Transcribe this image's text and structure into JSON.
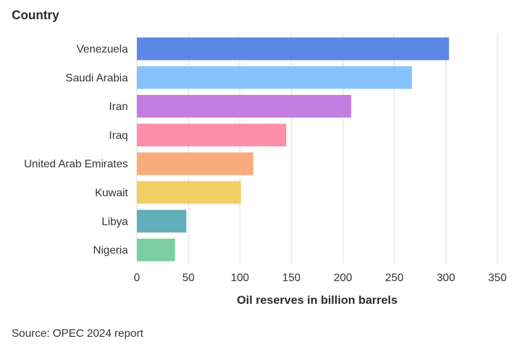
{
  "source": "Source: OPEC 2024 report",
  "chart_data": {
    "type": "bar",
    "orientation": "horizontal",
    "ylabel": "Country",
    "xlabel": "Oil reserves in billion barrels",
    "categories": [
      "Venezuela",
      "Saudi Arabia",
      "Iran",
      "Iraq",
      "United Arab Emirates",
      "Kuwait",
      "Libya",
      "Nigeria"
    ],
    "values": [
      303,
      267,
      208,
      145,
      113,
      101,
      48,
      37
    ],
    "colors": [
      "#5b87e6",
      "#86c3fe",
      "#c27de0",
      "#fd8fa9",
      "#f9ac7b",
      "#f1cf62",
      "#62aeb9",
      "#7ccfa4"
    ],
    "xlim": [
      0,
      350
    ],
    "xticks": [
      0,
      50,
      100,
      150,
      200,
      250,
      300,
      350
    ],
    "grid": true
  }
}
